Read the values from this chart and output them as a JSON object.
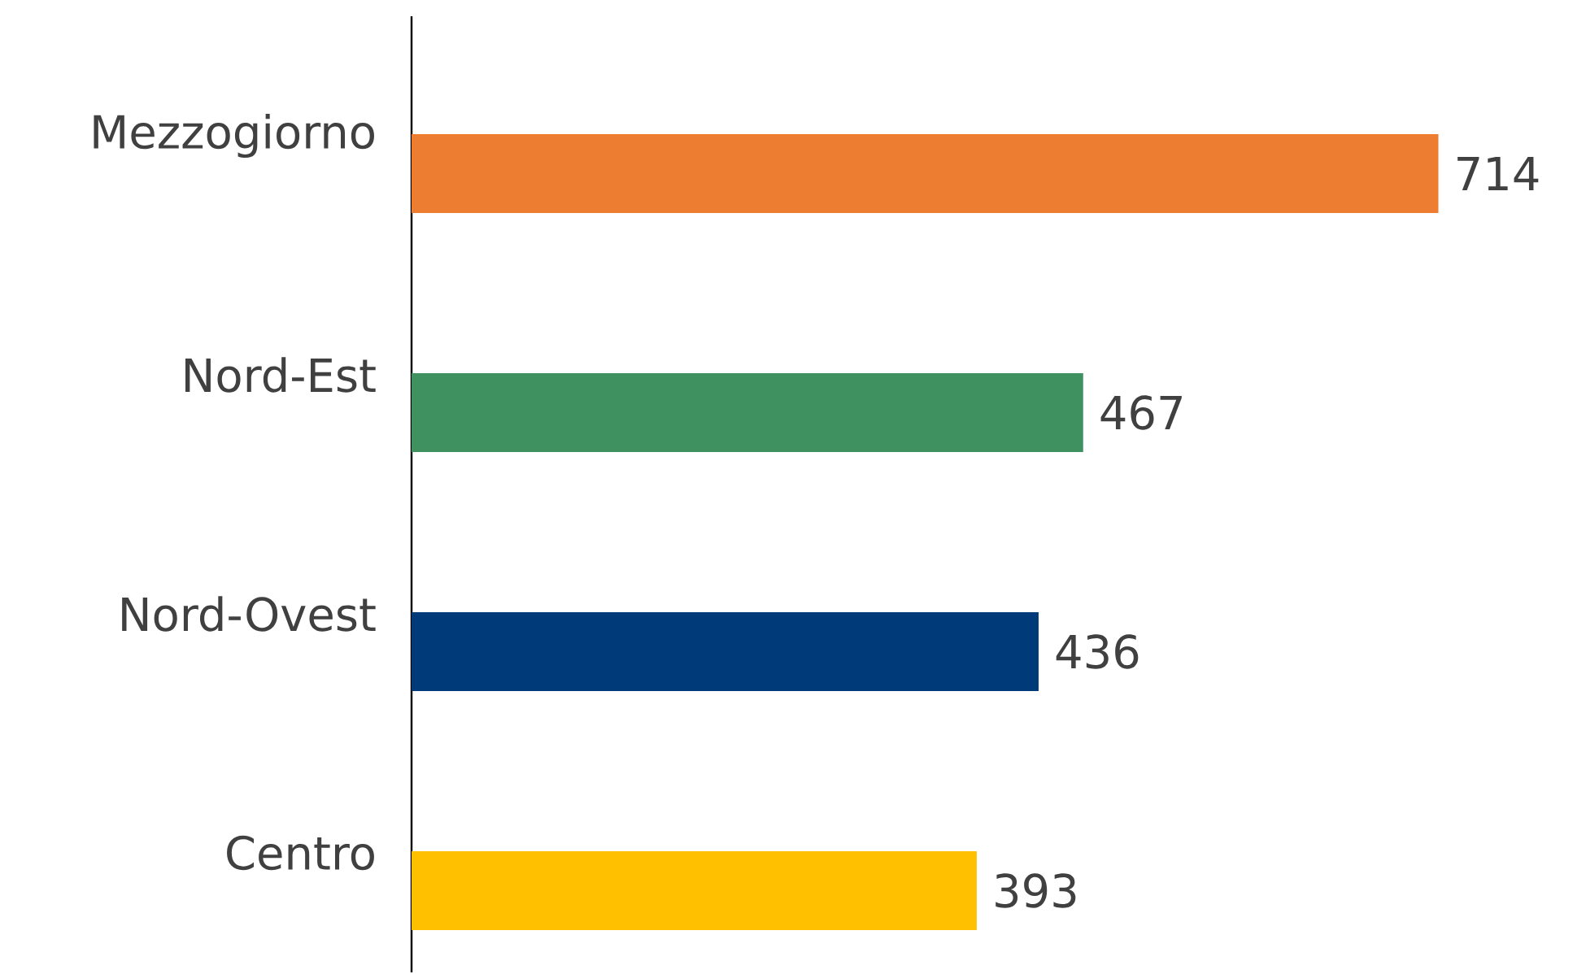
{
  "chart_data": {
    "type": "bar",
    "orientation": "horizontal",
    "categories": [
      "Mezzogiorno",
      "Nord-Est",
      "Nord-Ovest",
      "Centro"
    ],
    "values": [
      714,
      467,
      436,
      393
    ],
    "colors": [
      "#ed7d31",
      "#3f9160",
      "#003a78",
      "#ffc000"
    ],
    "data_labels": true,
    "tick_labels": "y"
  }
}
